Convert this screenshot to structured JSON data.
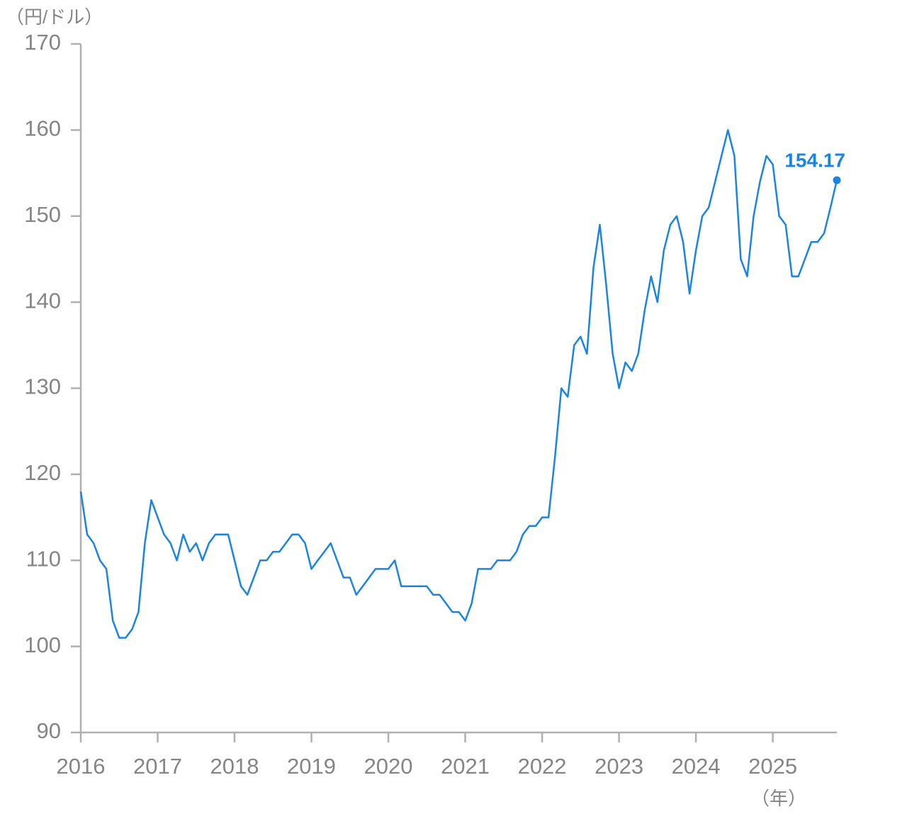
{
  "chart_data": {
    "type": "line",
    "y_label": "（円/ドル）",
    "x_label": "（年）",
    "x": [
      2016,
      2016.083,
      2016.167,
      2016.25,
      2016.333,
      2016.417,
      2016.5,
      2016.583,
      2016.667,
      2016.75,
      2016.833,
      2016.917,
      2017,
      2017.083,
      2017.167,
      2017.25,
      2017.333,
      2017.417,
      2017.5,
      2017.583,
      2017.667,
      2017.75,
      2017.833,
      2017.917,
      2018,
      2018.083,
      2018.167,
      2018.25,
      2018.333,
      2018.417,
      2018.5,
      2018.583,
      2018.667,
      2018.75,
      2018.833,
      2018.917,
      2019,
      2019.083,
      2019.167,
      2019.25,
      2019.333,
      2019.417,
      2019.5,
      2019.583,
      2019.667,
      2019.75,
      2019.833,
      2019.917,
      2020,
      2020.083,
      2020.167,
      2020.25,
      2020.333,
      2020.417,
      2020.5,
      2020.583,
      2020.667,
      2020.75,
      2020.833,
      2020.917,
      2021,
      2021.083,
      2021.167,
      2021.25,
      2021.333,
      2021.417,
      2021.5,
      2021.583,
      2021.667,
      2021.75,
      2021.833,
      2021.917,
      2022,
      2022.083,
      2022.167,
      2022.25,
      2022.333,
      2022.417,
      2022.5,
      2022.583,
      2022.667,
      2022.75,
      2022.833,
      2022.917,
      2023,
      2023.083,
      2023.167,
      2023.25,
      2023.333,
      2023.417,
      2023.5,
      2023.583,
      2023.667,
      2023.75,
      2023.833,
      2023.917,
      2024,
      2024.083,
      2024.167,
      2024.25,
      2024.333,
      2024.417,
      2024.5,
      2024.583,
      2024.667,
      2024.75,
      2024.833,
      2024.917,
      2025,
      2025.083,
      2025.167,
      2025.25,
      2025.333,
      2025.417,
      2025.5,
      2025.583,
      2025.667,
      2025.75,
      2025.833
    ],
    "series": [
      {
        "color": "#1a85e0",
        "values": [
          118,
          113,
          112,
          110,
          109,
          103,
          101,
          101,
          102,
          104,
          112,
          117,
          115,
          113,
          112,
          110,
          113,
          111,
          112,
          110,
          112,
          113,
          113,
          113,
          110,
          107,
          106,
          108,
          110,
          110,
          111,
          111,
          112,
          113,
          113,
          112,
          109,
          110,
          111,
          112,
          110,
          108,
          108,
          106,
          107,
          108,
          109,
          109,
          109,
          110,
          107,
          107,
          107,
          107,
          107,
          106,
          106,
          105,
          104,
          104,
          103,
          105,
          109,
          109,
          109,
          110,
          110,
          110,
          111,
          113,
          114,
          114,
          115,
          115,
          122,
          130,
          129,
          135,
          136,
          134,
          144,
          149,
          142,
          134,
          130,
          133,
          132,
          134,
          139,
          143,
          140,
          146,
          149,
          150,
          147,
          141,
          146,
          150,
          151,
          154,
          157,
          160,
          157,
          145,
          143,
          150,
          154,
          157,
          156,
          150,
          149,
          143,
          143,
          145,
          147,
          147,
          148,
          151,
          154.17
        ]
      }
    ],
    "xlim": [
      2016,
      2025.833
    ],
    "ylim": [
      90,
      170
    ],
    "xticks": [
      2016,
      2017,
      2018,
      2019,
      2020,
      2021,
      2022,
      2023,
      2024,
      2025
    ],
    "yticks": [
      90,
      100,
      110,
      120,
      130,
      140,
      150,
      160,
      170
    ]
  }
}
